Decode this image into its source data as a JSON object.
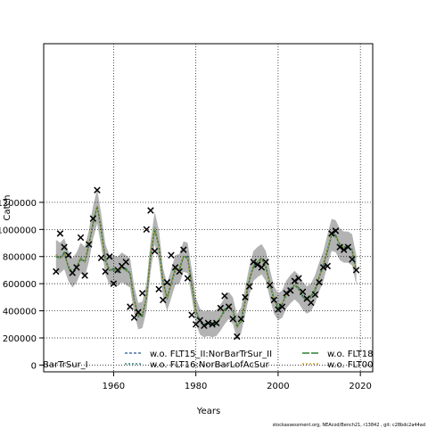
{
  "chart_data": {
    "type": "line",
    "xlabel": "Years",
    "ylabel": "Catch",
    "xlim": [
      1943,
      2023
    ],
    "ylim": [
      -50000,
      2370000
    ],
    "xticks": [
      1960,
      1980,
      2000,
      2020
    ],
    "yticks": [
      0,
      200000,
      400000,
      600000,
      800000,
      1000000,
      1200000
    ],
    "ytick_labels": [
      "0",
      "200000",
      "400000",
      "600000",
      "800000",
      "1000000",
      "1200000"
    ],
    "grid": true,
    "legend_position": "bottom",
    "years": [
      1946,
      1947,
      1948,
      1949,
      1950,
      1951,
      1952,
      1953,
      1954,
      1955,
      1956,
      1957,
      1958,
      1959,
      1960,
      1961,
      1962,
      1963,
      1964,
      1965,
      1966,
      1967,
      1968,
      1969,
      1970,
      1971,
      1972,
      1973,
      1974,
      1975,
      1976,
      1977,
      1978,
      1979,
      1980,
      1981,
      1982,
      1983,
      1984,
      1985,
      1986,
      1987,
      1988,
      1989,
      1990,
      1991,
      1992,
      1993,
      1994,
      1995,
      1996,
      1997,
      1998,
      1999,
      2000,
      2001,
      2002,
      2003,
      2004,
      2005,
      2006,
      2007,
      2008,
      2009,
      2010,
      2011,
      2012,
      2013,
      2014,
      2015,
      2016,
      2017,
      2018,
      2019
    ],
    "fitted": [
      810000,
      790000,
      820000,
      730000,
      680000,
      720000,
      790000,
      760000,
      880000,
      1050000,
      1170000,
      990000,
      780000,
      700000,
      700000,
      690000,
      720000,
      700000,
      680000,
      480000,
      360000,
      370000,
      500000,
      800000,
      1010000,
      880000,
      610000,
      500000,
      600000,
      700000,
      710000,
      800000,
      790000,
      600000,
      400000,
      320000,
      300000,
      310000,
      300000,
      310000,
      350000,
      400000,
      440000,
      400000,
      280000,
      330000,
      470000,
      620000,
      730000,
      760000,
      780000,
      730000,
      600000,
      480000,
      430000,
      450000,
      520000,
      560000,
      590000,
      560000,
      510000,
      480000,
      500000,
      560000,
      650000,
      730000,
      850000,
      960000,
      950000,
      890000,
      870000,
      870000,
      850000,
      700000
    ],
    "band_width": 120000,
    "observed": [
      [
        1946,
        690000
      ],
      [
        1947,
        970000
      ],
      [
        1948,
        870000
      ],
      [
        1949,
        810000
      ],
      [
        1950,
        680000
      ],
      [
        1951,
        720000
      ],
      [
        1952,
        940000
      ],
      [
        1953,
        660000
      ],
      [
        1954,
        890000
      ],
      [
        1955,
        1080000
      ],
      [
        1956,
        1290000
      ],
      [
        1957,
        790000
      ],
      [
        1958,
        690000
      ],
      [
        1959,
        800000
      ],
      [
        1960,
        600000
      ],
      [
        1961,
        700000
      ],
      [
        1962,
        730000
      ],
      [
        1963,
        760000
      ],
      [
        1964,
        430000
      ],
      [
        1965,
        350000
      ],
      [
        1966,
        390000
      ],
      [
        1967,
        530000
      ],
      [
        1968,
        1000000
      ],
      [
        1969,
        1140000
      ],
      [
        1970,
        840000
      ],
      [
        1971,
        560000
      ],
      [
        1972,
        480000
      ],
      [
        1973,
        610000
      ],
      [
        1974,
        810000
      ],
      [
        1975,
        720000
      ],
      [
        1976,
        690000
      ],
      [
        1977,
        850000
      ],
      [
        1978,
        640000
      ],
      [
        1979,
        370000
      ],
      [
        1980,
        300000
      ],
      [
        1981,
        330000
      ],
      [
        1982,
        290000
      ],
      [
        1983,
        310000
      ],
      [
        1984,
        300000
      ],
      [
        1985,
        310000
      ],
      [
        1986,
        420000
      ],
      [
        1987,
        510000
      ],
      [
        1988,
        430000
      ],
      [
        1989,
        340000
      ],
      [
        1990,
        210000
      ],
      [
        1991,
        340000
      ],
      [
        1992,
        500000
      ],
      [
        1993,
        580000
      ],
      [
        1994,
        760000
      ],
      [
        1995,
        740000
      ],
      [
        1996,
        720000
      ],
      [
        1997,
        760000
      ],
      [
        1998,
        590000
      ],
      [
        1999,
        480000
      ],
      [
        2000,
        410000
      ],
      [
        2001,
        430000
      ],
      [
        2002,
        530000
      ],
      [
        2003,
        550000
      ],
      [
        2004,
        620000
      ],
      [
        2005,
        640000
      ],
      [
        2006,
        540000
      ],
      [
        2007,
        490000
      ],
      [
        2008,
        460000
      ],
      [
        2009,
        520000
      ],
      [
        2010,
        610000
      ],
      [
        2011,
        720000
      ],
      [
        2012,
        730000
      ],
      [
        2013,
        970000
      ],
      [
        2014,
        990000
      ],
      [
        2015,
        870000
      ],
      [
        2016,
        850000
      ],
      [
        2017,
        870000
      ],
      [
        2018,
        780000
      ],
      [
        2019,
        700000
      ]
    ],
    "series": [
      {
        "name": "w.o. FLT15_II:NorBarTrSur_II",
        "color": "#4a6fa5",
        "dash": "3,2"
      },
      {
        "name": "w.o. FLT16:NorBarLofAcSur",
        "color": "#2e8b8b",
        "dash": "2,2"
      },
      {
        "name": "w.o. FLT18",
        "color": "#2e7d32",
        "dash": "8,2"
      },
      {
        "name": "w.o. FLT00",
        "color": "#c9a227",
        "dash": "2,2"
      }
    ],
    "legend_left_fragment": "BarTrSur_I"
  },
  "colors": {
    "band": "#b3b3b3",
    "base_line": "#2f6bb0",
    "marker": "#000000"
  },
  "footer": "stockassessment.org, NEAcod/Bench21, r13842 , git: c28bdc2a44ad"
}
